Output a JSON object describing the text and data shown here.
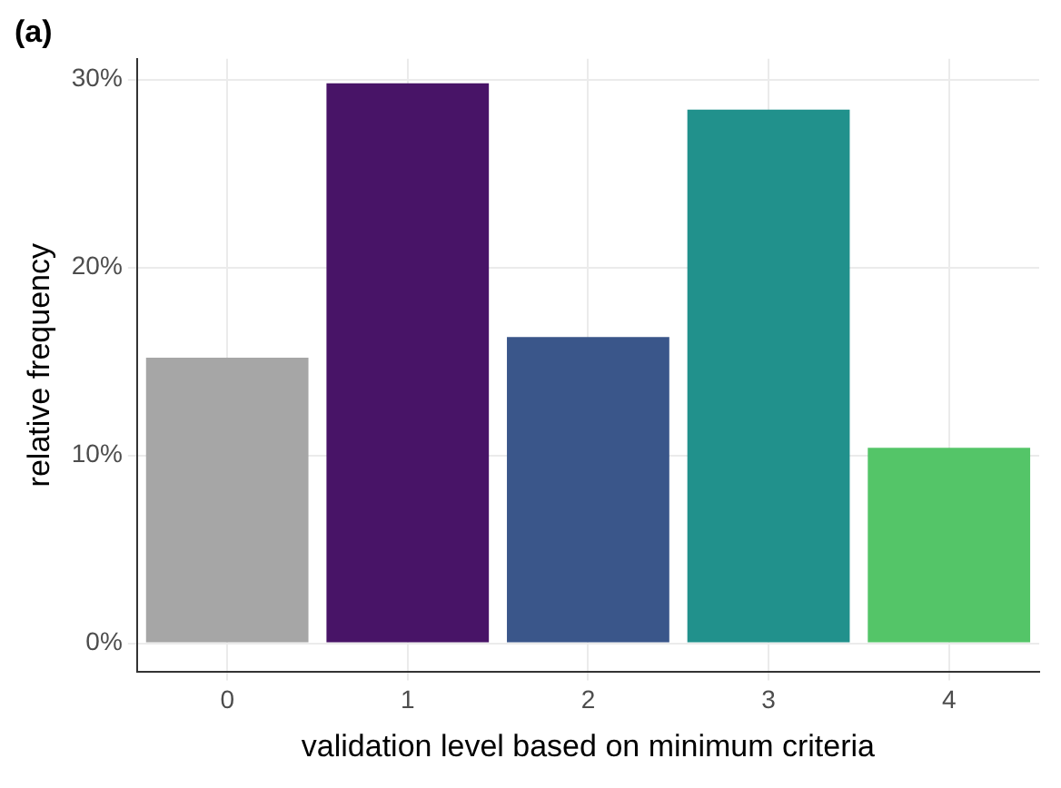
{
  "chart_data": {
    "type": "bar",
    "title": "(a)",
    "xlabel": "validation level based on minimum criteria",
    "ylabel": "relative frequency",
    "categories": [
      "0",
      "1",
      "2",
      "3",
      "4"
    ],
    "values": [
      15.2,
      29.8,
      16.3,
      28.4,
      10.4
    ],
    "colors": [
      "#a6a6a6",
      "#481467",
      "#3a568a",
      "#21918c",
      "#54c568"
    ],
    "ylim": [
      -1.5,
      31.1
    ],
    "yticks": [
      {
        "value": 0,
        "label": "0%"
      },
      {
        "value": 10,
        "label": "10%"
      },
      {
        "value": 20,
        "label": "20%"
      },
      {
        "value": 30,
        "label": "30%"
      }
    ],
    "grid": true,
    "legend": false
  }
}
